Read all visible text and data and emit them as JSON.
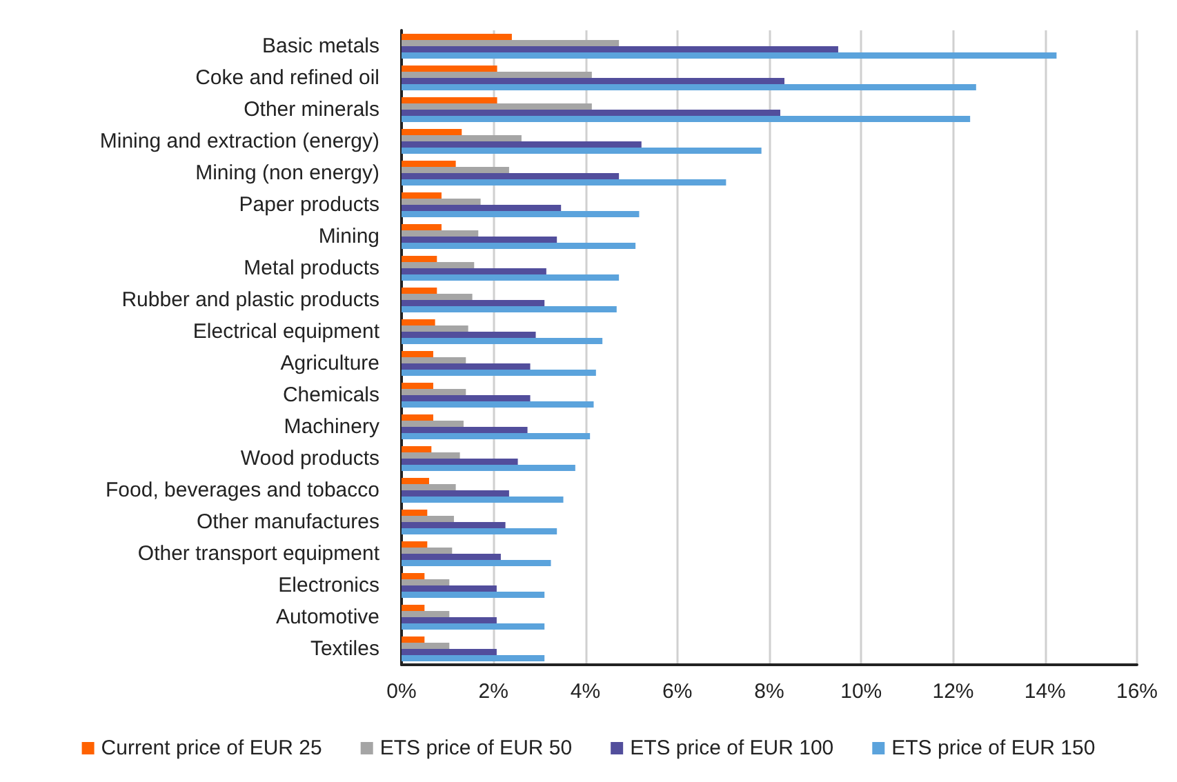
{
  "chart_data": {
    "type": "bar",
    "orientation": "horizontal",
    "categories": [
      "Basic metals",
      "Coke and refined oil",
      "Other minerals",
      "Mining and extraction (energy)",
      "Mining (non energy)",
      "Paper products",
      "Mining",
      "Metal products",
      "Rubber and plastic products",
      "Electrical equipment",
      "Agriculture",
      "Chemicals",
      "Machinery",
      "Wood products",
      "Food, beverages and tobacco",
      "Other manufactures",
      "Other transport equipment",
      "Electronics",
      "Automotive",
      "Textiles"
    ],
    "series": [
      {
        "name": "Current price of EUR 25",
        "color": "#ff6200",
        "values": [
          2.4,
          2.08,
          2.08,
          1.31,
          1.18,
          0.87,
          0.87,
          0.77,
          0.77,
          0.73,
          0.69,
          0.69,
          0.69,
          0.65,
          0.6,
          0.56,
          0.56,
          0.5,
          0.5,
          0.5
        ]
      },
      {
        "name": "ETS price of EUR 50",
        "color": "#a5a5a5",
        "values": [
          4.73,
          4.14,
          4.14,
          2.61,
          2.34,
          1.72,
          1.67,
          1.58,
          1.54,
          1.45,
          1.4,
          1.4,
          1.35,
          1.27,
          1.18,
          1.14,
          1.1,
          1.04,
          1.04,
          1.04
        ]
      },
      {
        "name": "ETS price of EUR 100",
        "color": "#524e9c",
        "values": [
          9.5,
          8.33,
          8.24,
          5.22,
          4.73,
          3.47,
          3.38,
          3.15,
          3.11,
          2.92,
          2.8,
          2.8,
          2.74,
          2.53,
          2.34,
          2.26,
          2.16,
          2.07,
          2.07,
          2.07
        ]
      },
      {
        "name": "ETS price of EUR 150",
        "color": "#5ba3dc",
        "values": [
          14.25,
          12.5,
          12.37,
          7.83,
          7.06,
          5.17,
          5.09,
          4.73,
          4.68,
          4.37,
          4.23,
          4.18,
          4.1,
          3.78,
          3.52,
          3.38,
          3.25,
          3.11,
          3.11,
          3.11
        ]
      }
    ],
    "xlim": [
      0,
      16
    ],
    "xticks": [
      {
        "value": 0,
        "label": "0%"
      },
      {
        "value": 2,
        "label": "2%"
      },
      {
        "value": 4,
        "label": "4%"
      },
      {
        "value": 6,
        "label": "6%"
      },
      {
        "value": 8,
        "label": "8%"
      },
      {
        "value": 10,
        "label": "10%"
      },
      {
        "value": 12,
        "label": "12%"
      },
      {
        "value": 14,
        "label": "14%"
      },
      {
        "value": 16,
        "label": "16%"
      }
    ],
    "grid": "x",
    "legend": "bottom"
  }
}
